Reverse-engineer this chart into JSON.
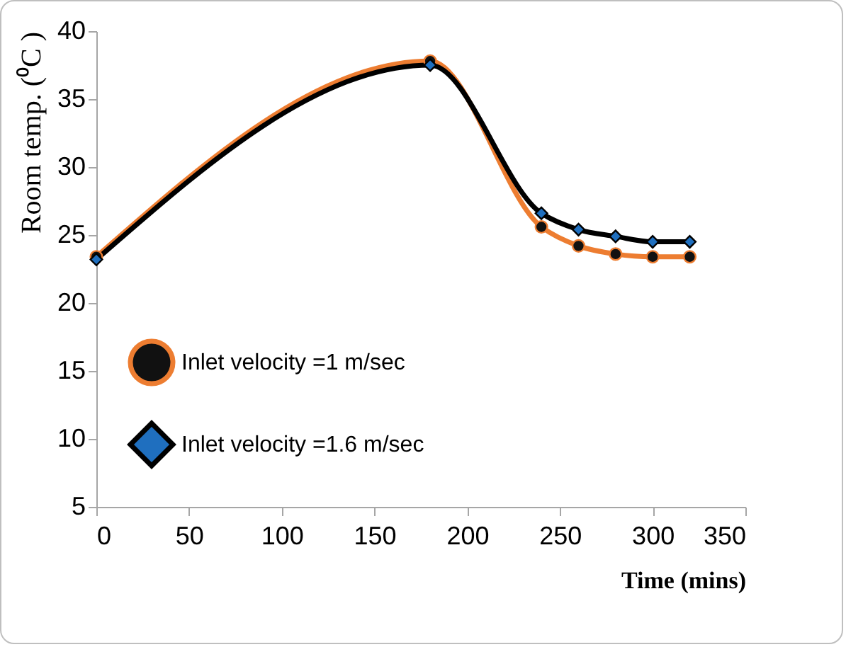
{
  "chart_data": {
    "type": "line",
    "xlabel": "Time (mins)",
    "ylabel": "Room temp. (⁰C )",
    "x": [
      0,
      180,
      240,
      260,
      280,
      300,
      320
    ],
    "series": [
      {
        "name": "Inlet velocity =1 m/sec",
        "color": "#ed7d31",
        "marker": "circle",
        "values": [
          23.4,
          37.8,
          25.6,
          24.2,
          23.6,
          23.4,
          23.4
        ]
      },
      {
        "name": "Inlet velocity =1.6 m/sec",
        "color": "#000000",
        "marker": "diamond",
        "values": [
          23.2,
          37.5,
          26.6,
          25.4,
          24.9,
          24.5,
          24.5
        ]
      }
    ],
    "xlim": [
      0,
      350
    ],
    "xticks": [
      0,
      50,
      100,
      150,
      200,
      250,
      300,
      350
    ],
    "ylim": [
      5,
      40
    ],
    "yticks": [
      5,
      10,
      15,
      20,
      25,
      30,
      35,
      40
    ],
    "grid": false,
    "legend": "bottom left",
    "line_style": "solid"
  }
}
